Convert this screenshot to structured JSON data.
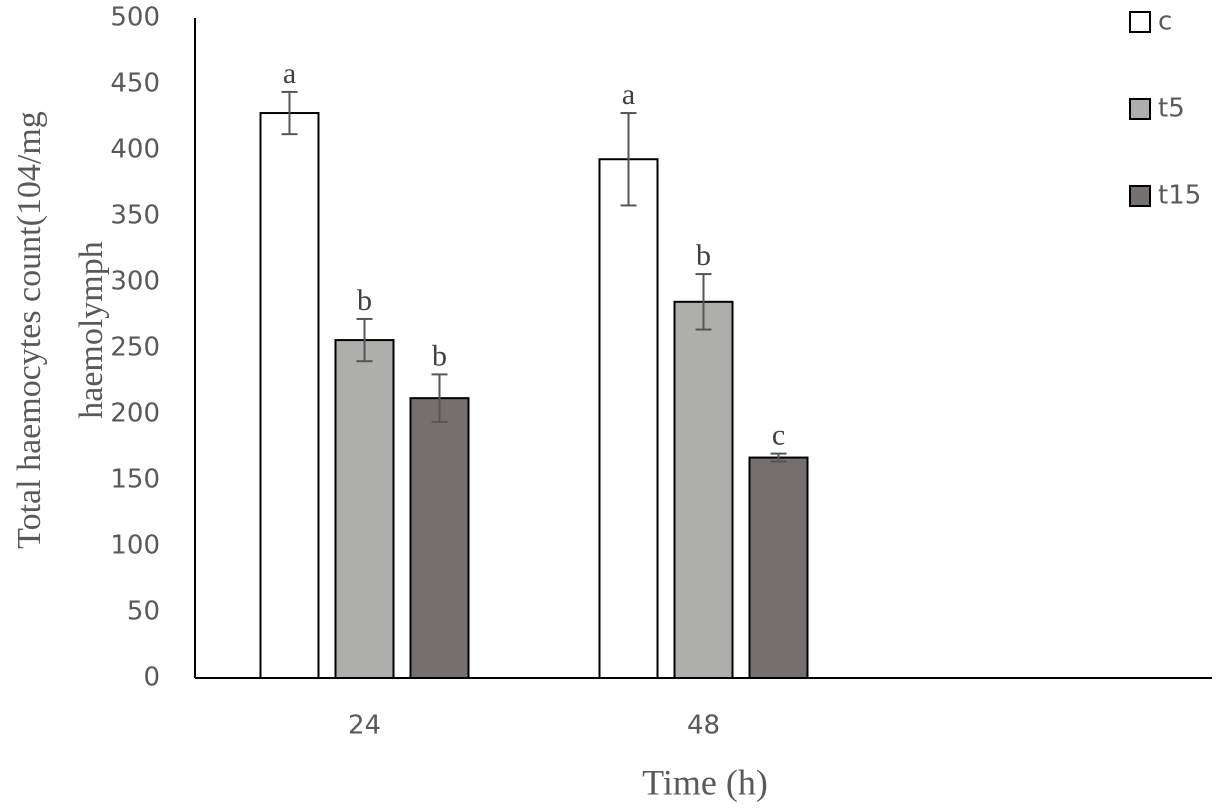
{
  "chart_data": {
    "type": "bar",
    "ylabel": [
      "Total haemocytes count(104/mg",
      "haemolymph"
    ],
    "xlabel": "Time (h)",
    "categories": [
      "24",
      "48",
      null
    ],
    "series": [
      {
        "name": "c",
        "color": "#ffffff",
        "values": [
          428,
          393,
          null
        ],
        "errors": [
          16,
          35,
          null
        ],
        "value_labels": [
          "a",
          "a",
          null
        ]
      },
      {
        "name": "t5",
        "color": "#aeaeac",
        "values": [
          256,
          285,
          null
        ],
        "errors": [
          16,
          21,
          null
        ],
        "value_labels": [
          "b",
          "b",
          null
        ]
      },
      {
        "name": "t15",
        "color": "#756f6f",
        "values": [
          212,
          167,
          null
        ],
        "errors": [
          18,
          3,
          null
        ],
        "value_labels": [
          "b",
          "c",
          null
        ]
      }
    ],
    "ylim": [
      0,
      500
    ],
    "yticks": [
      0,
      50,
      100,
      150,
      200,
      250,
      300,
      350,
      400,
      450,
      500
    ],
    "grid": false,
    "legend": "top-right"
  }
}
